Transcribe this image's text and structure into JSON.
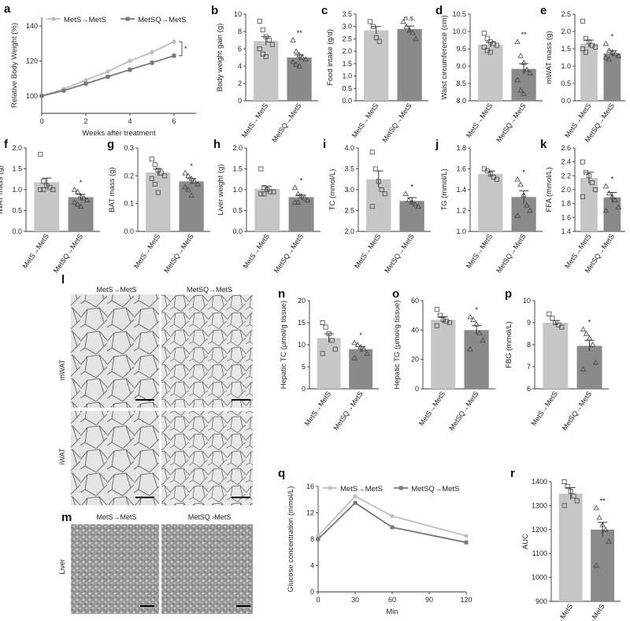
{
  "groups": [
    "MetS→MetS",
    "MetSQ→MetS"
  ],
  "colors": {
    "light": "#c6c6c6",
    "dark": "#8a8a8a",
    "line_light": "#bdbdbd",
    "line_dark": "#777777"
  },
  "chart_data": [
    {
      "id": "a",
      "type": "line",
      "panel_label": "a",
      "xlabel": "Weeks after treatment",
      "ylabel": "Relative Body Weight (%)",
      "xlim": [
        0,
        7
      ],
      "ylim": [
        90,
        145
      ],
      "xticks": [
        0,
        2,
        4,
        6
      ],
      "yticks": [
        100,
        120,
        140
      ],
      "legend": {
        "position": "top"
      },
      "annotation": "*",
      "x": [
        0,
        1,
        2,
        3,
        4,
        5,
        6
      ],
      "series": [
        {
          "name": "MetS→MetS",
          "values": [
            100,
            104,
            109,
            114,
            120,
            125,
            131
          ],
          "err": [
            0,
            1,
            1.5,
            1.5,
            1.5,
            2,
            2
          ]
        },
        {
          "name": "MetSQ→MetS",
          "values": [
            100,
            103,
            107,
            111,
            115,
            119,
            123
          ],
          "err": [
            0,
            1,
            1,
            1,
            1.5,
            1.5,
            1.5
          ]
        }
      ]
    },
    {
      "id": "b",
      "type": "bar",
      "panel_label": "b",
      "ylabel": "Body weight gain (g)",
      "ylim": [
        0,
        10
      ],
      "yticks": [
        0,
        2,
        4,
        6,
        8,
        10
      ],
      "values": [
        6.9,
        5.0
      ],
      "err": [
        0.5,
        0.3
      ],
      "sig": "**",
      "points": [
        [
          9.2,
          8.2,
          7.4,
          7.0,
          6.5,
          6.0,
          5.4,
          5.1
        ],
        [
          7.0,
          5.7,
          5.3,
          5.0,
          4.8,
          4.5,
          4.2,
          4.0
        ]
      ]
    },
    {
      "id": "c",
      "type": "bar",
      "panel_label": "c",
      "ylabel": "Food intake (g/d)",
      "ylim": [
        0,
        3.5
      ],
      "yticks": [
        0.0,
        0.5,
        1.0,
        1.5,
        2.0,
        2.5,
        3.0,
        3.5
      ],
      "values": [
        2.85,
        2.9
      ],
      "err": [
        0.15,
        0.12
      ],
      "sig": "n.s.",
      "points": [
        [
          3.2,
          3.0,
          2.55,
          2.4
        ],
        [
          3.2,
          3.0,
          2.85,
          2.75,
          2.5
        ]
      ]
    },
    {
      "id": "d",
      "type": "bar",
      "panel_label": "d",
      "ylabel": "Waist circumference (cm)",
      "ylim": [
        8.0,
        10.5
      ],
      "yticks": [
        8.0,
        8.5,
        9.0,
        9.5,
        10.0,
        10.5
      ],
      "values": [
        9.62,
        8.92
      ],
      "err": [
        0.07,
        0.15
      ],
      "sig": "**",
      "points": [
        [
          9.95,
          9.8,
          9.7,
          9.65,
          9.6,
          9.55,
          9.45,
          9.4
        ],
        [
          9.7,
          9.3,
          9.1,
          8.9,
          8.8,
          8.6,
          8.3,
          8.2
        ]
      ]
    },
    {
      "id": "e",
      "type": "bar",
      "panel_label": "e",
      "ylabel": "mWAT mass (g)",
      "ylim": [
        0,
        2.5
      ],
      "yticks": [
        0.0,
        0.5,
        1.0,
        1.5,
        2.0,
        2.5
      ],
      "values": [
        1.65,
        1.37
      ],
      "err": [
        0.1,
        0.08
      ],
      "sig": "*",
      "points": [
        [
          2.3,
          1.8,
          1.7,
          1.6,
          1.55,
          1.5,
          1.4
        ],
        [
          1.65,
          1.45,
          1.4,
          1.35,
          1.3,
          1.25,
          1.2
        ]
      ]
    },
    {
      "id": "f",
      "type": "bar",
      "panel_label": "f",
      "ylabel": "iWAT mass (g)",
      "ylim": [
        0,
        2.0
      ],
      "yticks": [
        0.0,
        0.5,
        1.0,
        1.5,
        2.0
      ],
      "values": [
        1.18,
        0.82
      ],
      "err": [
        0.1,
        0.07
      ],
      "sig": "*",
      "points": [
        [
          1.85,
          1.2,
          1.1,
          1.05,
          1.0,
          1.0,
          1.0
        ],
        [
          1.0,
          0.95,
          0.85,
          0.8,
          0.75,
          0.7,
          0.65,
          0.6
        ]
      ]
    },
    {
      "id": "g",
      "type": "bar",
      "panel_label": "g",
      "ylabel": "BAT mass (g)",
      "ylim": [
        0,
        0.3
      ],
      "yticks": [
        0.0,
        0.1,
        0.2,
        0.3
      ],
      "values": [
        0.212,
        0.18
      ],
      "err": [
        0.012,
        0.01
      ],
      "sig": "*",
      "points": [
        [
          0.26,
          0.24,
          0.22,
          0.21,
          0.2,
          0.19,
          0.17,
          0.14
        ],
        [
          0.21,
          0.2,
          0.19,
          0.18,
          0.17,
          0.16,
          0.15,
          0.13
        ]
      ]
    },
    {
      "id": "h",
      "type": "bar",
      "panel_label": "h",
      "ylabel": "Liver weight (g)",
      "ylim": [
        0,
        2.0
      ],
      "yticks": [
        0.0,
        0.5,
        1.0,
        1.5,
        2.0
      ],
      "values": [
        1.02,
        0.82
      ],
      "err": [
        0.06,
        0.05
      ],
      "sig": "*",
      "points": [
        [
          1.5,
          1.05,
          1.0,
          0.95,
          0.95,
          0.9,
          0.9
        ],
        [
          1.05,
          0.9,
          0.85,
          0.8,
          0.75,
          0.7,
          0.7
        ]
      ]
    },
    {
      "id": "i",
      "type": "bar",
      "panel_label": "i",
      "ylabel": "TC (mmol/L)",
      "ylim": [
        2.0,
        4.0
      ],
      "yticks": [
        2.0,
        2.5,
        3.0,
        3.5,
        4.0
      ],
      "values": [
        3.25,
        2.73
      ],
      "err": [
        0.2,
        0.08
      ],
      "sig": "*",
      "points": [
        [
          3.9,
          3.5,
          3.2,
          3.0,
          2.9,
          2.6
        ],
        [
          2.9,
          2.75,
          2.7,
          2.65,
          2.6
        ]
      ]
    },
    {
      "id": "j",
      "type": "bar",
      "panel_label": "j",
      "ylabel": "TG (mmol/L)",
      "ylim": [
        1.0,
        1.8
      ],
      "yticks": [
        1.0,
        1.2,
        1.4,
        1.6,
        1.8
      ],
      "values": [
        1.55,
        1.33
      ],
      "err": [
        0.03,
        0.06
      ],
      "sig": "*",
      "points": [
        [
          1.6,
          1.58,
          1.55,
          1.52,
          1.5
        ],
        [
          1.5,
          1.45,
          1.35,
          1.25,
          1.2,
          1.15
        ]
      ]
    },
    {
      "id": "k",
      "type": "bar",
      "panel_label": "k",
      "ylabel": "FFA (mmol/L)",
      "ylim": [
        1.4,
        2.6
      ],
      "yticks": [
        1.4,
        1.6,
        1.8,
        2.0,
        2.2,
        2.4,
        2.6
      ],
      "values": [
        2.17,
        1.89
      ],
      "err": [
        0.08,
        0.07
      ],
      "sig": "*",
      "points": [
        [
          2.4,
          2.25,
          2.2,
          2.1,
          2.0,
          1.9
        ],
        [
          2.05,
          1.95,
          1.9,
          1.85,
          1.75,
          1.7
        ]
      ]
    },
    {
      "id": "n",
      "type": "bar",
      "panel_label": "n",
      "ylabel": "Hepatic TC (μmol/g tissue)",
      "ylim": [
        0,
        20
      ],
      "yticks": [
        0,
        5,
        10,
        15,
        20
      ],
      "values": [
        11.5,
        9.0
      ],
      "err": [
        1.0,
        0.6
      ],
      "sig": "*",
      "points": [
        [
          15,
          14,
          12.5,
          11,
          9,
          8
        ],
        [
          10.5,
          10,
          9.5,
          9,
          8,
          7
        ]
      ]
    },
    {
      "id": "o",
      "type": "bar",
      "panel_label": "o",
      "ylabel": "Hepatic TG (μmol/g tissue)",
      "ylim": [
        0,
        60
      ],
      "yticks": [
        0,
        20,
        40,
        60
      ],
      "values": [
        47,
        40
      ],
      "err": [
        2,
        3
      ],
      "sig": "*",
      "points": [
        [
          54,
          50,
          47,
          46,
          45,
          43
        ],
        [
          49,
          47,
          44,
          38,
          33,
          27
        ]
      ]
    },
    {
      "id": "p",
      "type": "bar",
      "panel_label": "p",
      "ylabel": "FBG (mmol/L)",
      "ylim": [
        6,
        10
      ],
      "yticks": [
        6,
        7,
        8,
        9,
        10
      ],
      "values": [
        9.0,
        7.95
      ],
      "err": [
        0.1,
        0.25
      ],
      "sig": "*",
      "points": [
        [
          9.4,
          9.2,
          9.0,
          8.9,
          8.8
        ],
        [
          8.7,
          8.5,
          8.3,
          8.0,
          7.2,
          6.9
        ]
      ]
    },
    {
      "id": "q",
      "type": "line",
      "panel_label": "q",
      "xlabel": "Min",
      "ylabel": "Glucose concentration (mmol/L)",
      "xlim": [
        0,
        120
      ],
      "ylim": [
        0,
        16
      ],
      "xticks": [
        0,
        30,
        60,
        90,
        120
      ],
      "yticks": [
        0,
        4,
        8,
        12,
        16
      ],
      "legend": {
        "position": "top"
      },
      "x": [
        0,
        30,
        60,
        120
      ],
      "series": [
        {
          "name": "MetS→MetS",
          "values": [
            8.5,
            14.5,
            11.5,
            8.5
          ]
        },
        {
          "name": "MetSQ→MetS",
          "values": [
            8.0,
            13.5,
            9.8,
            7.5
          ]
        }
      ]
    },
    {
      "id": "r",
      "type": "bar",
      "panel_label": "r",
      "ylabel": "AUC",
      "ylim": [
        900,
        1400
      ],
      "yticks": [
        900,
        1000,
        1100,
        1200,
        1300,
        1400
      ],
      "values": [
        1350,
        1200
      ],
      "err": [
        25,
        30
      ],
      "sig": "**",
      "points": [
        [
          1400,
          1380,
          1360,
          1340,
          1320,
          1300
        ],
        [
          1290,
          1250,
          1220,
          1200,
          1150,
          1050
        ]
      ]
    }
  ],
  "images": {
    "l": {
      "label": "l",
      "col_labels": [
        "MetS→MetS",
        "MetSQ→MetS"
      ],
      "row_labels": [
        "mWAT",
        "iWAT"
      ]
    },
    "m": {
      "label": "m",
      "col_labels": [
        "MetS→MetS",
        "MetSQ  ›MetS"
      ],
      "row_labels": [
        "Liver"
      ]
    }
  }
}
